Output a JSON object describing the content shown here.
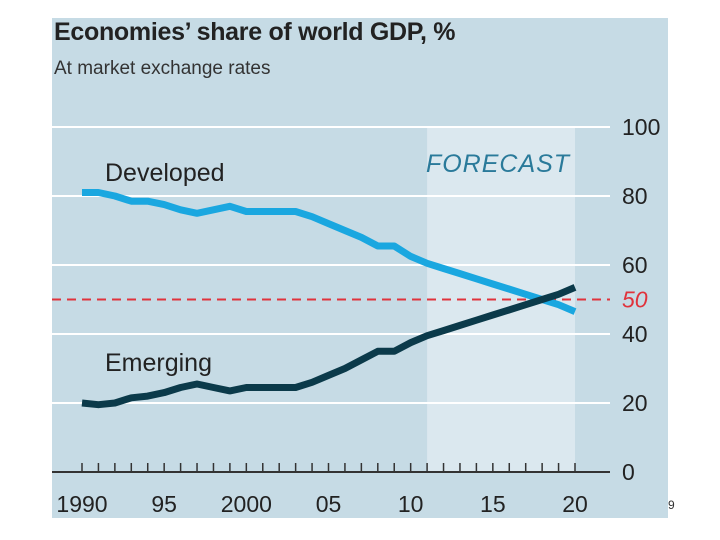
{
  "page_number": "9",
  "chart_data": {
    "type": "line",
    "title": "Economies’ share of world GDP, %",
    "subtitle": "At market exchange rates",
    "forecast_label": "FORECAST",
    "forecast_start": 2011,
    "x_range": [
      1990,
      2020
    ],
    "ylim": [
      0,
      100
    ],
    "y_ticks": [
      0,
      20,
      40,
      60,
      80,
      100
    ],
    "y_tick_labels": [
      "0",
      "20",
      "40",
      "60",
      "80",
      "100"
    ],
    "x_tick_labels": [
      {
        "x": 1990,
        "label": "1990"
      },
      {
        "x": 1995,
        "label": "95"
      },
      {
        "x": 2000,
        "label": "2000"
      },
      {
        "x": 2005,
        "label": "05"
      },
      {
        "x": 2010,
        "label": "10"
      },
      {
        "x": 2015,
        "label": "15"
      },
      {
        "x": 2020,
        "label": "20"
      }
    ],
    "reference_line": {
      "value": 50,
      "label": "50",
      "color": "#e0333c"
    },
    "grid": true,
    "series": [
      {
        "name": "Developed",
        "color": "#1aa7e0",
        "x": [
          1990,
          1991,
          1992,
          1993,
          1994,
          1995,
          1996,
          1997,
          1998,
          1999,
          2000,
          2001,
          2002,
          2003,
          2004,
          2005,
          2006,
          2007,
          2008,
          2009,
          2010,
          2011,
          2012,
          2013,
          2014,
          2015,
          2016,
          2017,
          2018,
          2019,
          2020
        ],
        "values": [
          81,
          81,
          80,
          78.5,
          78.5,
          77.5,
          76,
          75,
          76,
          77,
          75.5,
          75.5,
          75.5,
          75.5,
          74,
          72,
          70,
          68,
          65.5,
          65.5,
          62.5,
          60.5,
          59,
          57.5,
          56,
          54.5,
          53,
          51.5,
          50,
          48.5,
          46.5
        ]
      },
      {
        "name": "Emerging",
        "color": "#0b3a4a",
        "x": [
          1990,
          1991,
          1992,
          1993,
          1994,
          1995,
          1996,
          1997,
          1998,
          1999,
          2000,
          2001,
          2002,
          2003,
          2004,
          2005,
          2006,
          2007,
          2008,
          2009,
          2010,
          2011,
          2012,
          2013,
          2014,
          2015,
          2016,
          2017,
          2018,
          2019,
          2020
        ],
        "values": [
          20,
          19.5,
          20,
          21.5,
          22,
          23,
          24.5,
          25.5,
          24.5,
          23.5,
          24.5,
          24.5,
          24.5,
          24.5,
          26,
          28,
          30,
          32.5,
          35,
          35,
          37.5,
          39.5,
          41,
          42.5,
          44,
          45.5,
          47,
          48.5,
          50,
          51.5,
          53.5
        ]
      }
    ]
  }
}
